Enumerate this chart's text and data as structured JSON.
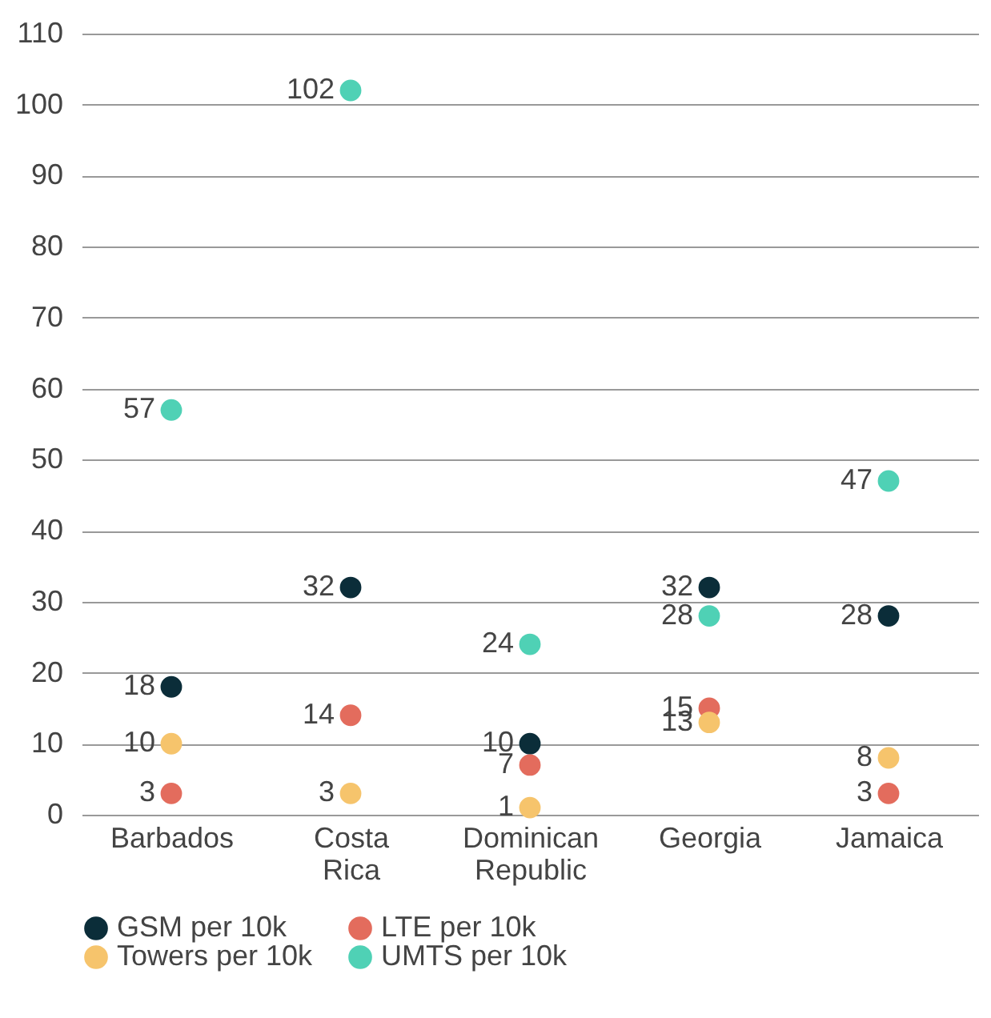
{
  "chart_data": {
    "type": "scatter",
    "categories": [
      "Barbados",
      "Costa Rica",
      "Dominican Republic",
      "Georgia",
      "Jamaica"
    ],
    "series": [
      {
        "name": "GSM per 10k",
        "color": "#0b2d39",
        "values": [
          18,
          32,
          10,
          32,
          28
        ]
      },
      {
        "name": "LTE per 10k",
        "color": "#e36c5d",
        "values": [
          3,
          14,
          7,
          15,
          3
        ]
      },
      {
        "name": "Towers per 10k",
        "color": "#f6c46c",
        "values": [
          10,
          3,
          1,
          13,
          8
        ]
      },
      {
        "name": "UMTS per 10k",
        "color": "#4fd1b5",
        "values": [
          57,
          102,
          24,
          28,
          47
        ]
      }
    ],
    "ylim": [
      0,
      110
    ],
    "yticks": [
      0,
      10,
      20,
      30,
      40,
      50,
      60,
      70,
      80,
      90,
      100,
      110
    ],
    "grid": "y",
    "legend": "bottom",
    "marker": "circle",
    "data_labels": true
  }
}
